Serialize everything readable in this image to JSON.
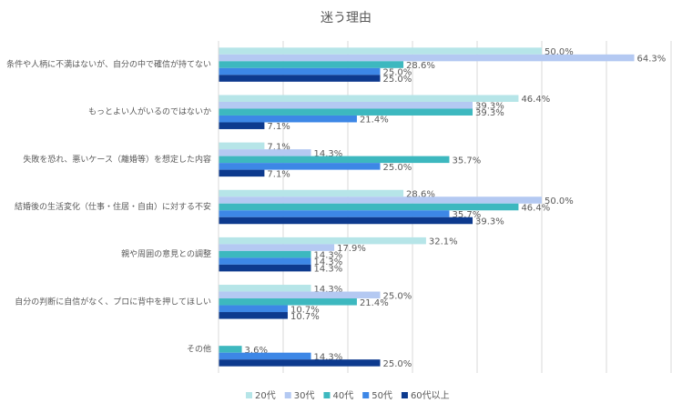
{
  "chart_data": {
    "type": "hbar",
    "title": "迷う理由",
    "categories": [
      "条件や人柄に不満はないが、自分の中で確信が持てない",
      "もっとよい人がいるのではないか",
      "失敗を恐れ、悪いケース（離婚等）を想定した内容",
      "結婚後の生活変化（仕事・住居・自由）に対する不安",
      "親や周囲の意見との調整",
      "自分の判断に自信がなく、プロに背中を押してほしい",
      "その他"
    ],
    "series": [
      {
        "name": "20代",
        "color": "#b6e5e8",
        "values": [
          50.0,
          46.4,
          7.1,
          28.6,
          32.1,
          14.3,
          null
        ],
        "value_labels": [
          "50.0%",
          "46.4%",
          "7.1%",
          "28.6%",
          "32.1%",
          "14.3%",
          null
        ]
      },
      {
        "name": "30代",
        "color": "#b4c9f2",
        "values": [
          64.3,
          39.3,
          14.3,
          50.0,
          17.9,
          25.0,
          null
        ],
        "value_labels": [
          "64.3%",
          "39.3%",
          "14.3%",
          "50.0%",
          "17.9%",
          "25.0%",
          null
        ]
      },
      {
        "name": "40代",
        "color": "#3db8bf",
        "values": [
          28.6,
          39.3,
          35.7,
          46.4,
          14.3,
          21.4,
          3.6
        ],
        "value_labels": [
          "28.6%",
          "39.3%",
          "35.7%",
          "46.4%",
          "14.3%",
          "21.4%",
          "3.6%"
        ]
      },
      {
        "name": "50代",
        "color": "#3d87e6",
        "values": [
          25.0,
          21.4,
          25.0,
          35.7,
          14.3,
          10.7,
          14.3
        ],
        "value_labels": [
          "25.0%",
          "21.4%",
          "25.0%",
          "35.7%",
          "14.3%",
          "10.7%",
          "14.3%"
        ]
      },
      {
        "name": "60代以上",
        "color": "#0d3a8e",
        "values": [
          25.0,
          7.1,
          7.1,
          39.3,
          14.3,
          10.7,
          25.0
        ],
        "value_labels": [
          "25.0%",
          "7.1%",
          "7.1%",
          "39.3%",
          "14.3%",
          "10.7%",
          "25.0%"
        ]
      }
    ],
    "xlim": [
      0,
      70
    ],
    "xticks": [
      0,
      10,
      20,
      30,
      40,
      50,
      60,
      70
    ],
    "grid": true
  }
}
